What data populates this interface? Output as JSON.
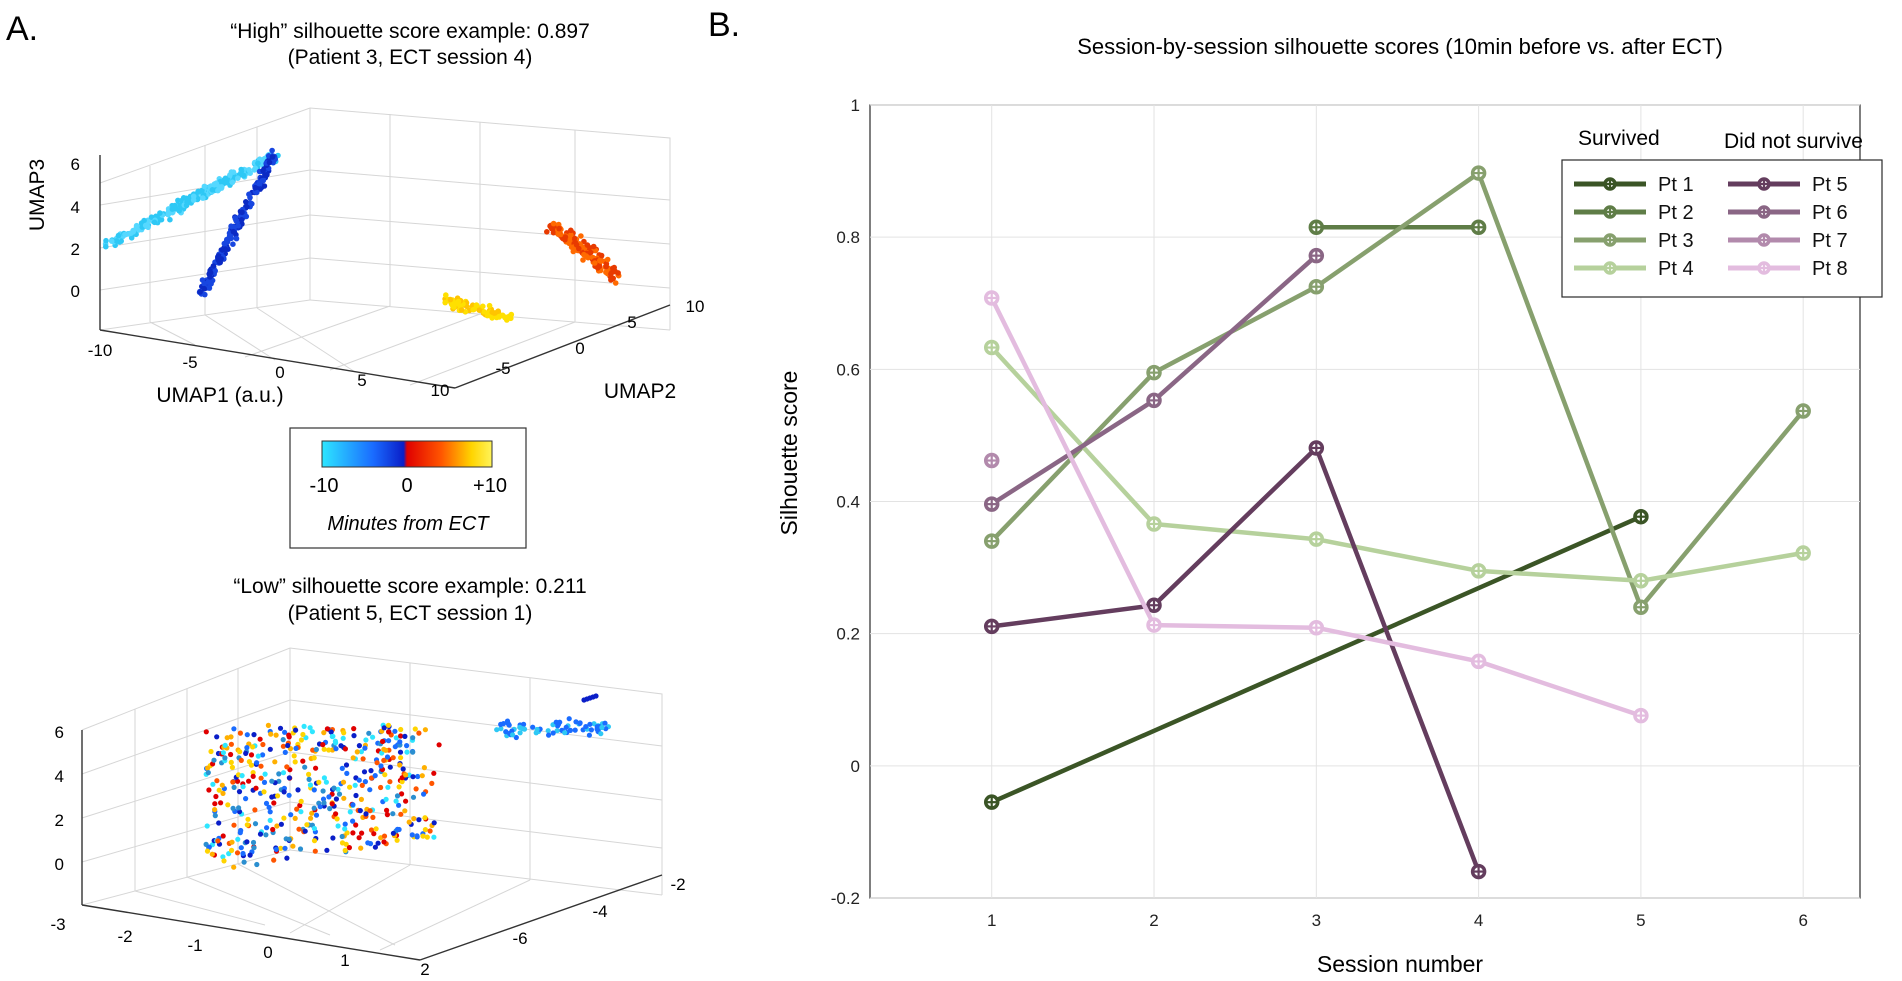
{
  "panelA": {
    "label": "A.",
    "high": {
      "title": "“High” silhouette score example: 0.897",
      "subtitle": "(Patient 3, ECT session 4)",
      "xlabel": "UMAP1 (a.u.)",
      "ylabel": "UMAP2",
      "zlabel": "UMAP3",
      "xticks": [
        "-10",
        "-5",
        "0",
        "5",
        "10"
      ],
      "yticks": [
        "-5",
        "0",
        "5",
        "10"
      ],
      "zticks": [
        "0",
        "2",
        "4",
        "6"
      ]
    },
    "low": {
      "title": "“Low” silhouette score example: 0.211",
      "subtitle": "(Patient 5, ECT session 1)",
      "xticks": [
        "-3",
        "-2",
        "-1",
        "0",
        "1",
        "2"
      ],
      "yticks": [
        "-6",
        "-4",
        "-2"
      ],
      "zticks": [
        "0",
        "2",
        "4",
        "6"
      ]
    },
    "colorbar": {
      "ticks": [
        "-10",
        "0",
        "+10"
      ],
      "label": "Minutes from ECT",
      "colors": [
        "#2ee6ff",
        "#1a6cff",
        "#0a1ec8",
        "#e00000",
        "#ff5500",
        "#ffd400",
        "#fff45a"
      ]
    }
  },
  "chart_data": {
    "type": "line",
    "label": "B.",
    "title": "Session-by-session silhouette scores (10min before vs. after ECT)",
    "xlabel": "Session number",
    "ylabel": "Silhouette score",
    "xlim": [
      0.25,
      6.35
    ],
    "ylim": [
      -0.2,
      1.0
    ],
    "xticks": [
      1,
      2,
      3,
      4,
      5,
      6
    ],
    "yticks": [
      -0.2,
      0,
      0.2,
      0.4,
      0.6,
      0.8,
      1
    ],
    "ytick_labels": [
      "-0.2",
      "0",
      "0.2",
      "0.4",
      "0.6",
      "0.8",
      "1"
    ],
    "grid": true,
    "legend": {
      "position": "top-right",
      "group_survived": "Survived",
      "group_not_survived": "Did not survive"
    },
    "series": [
      {
        "name": "Pt 1",
        "group": "survived",
        "color": "#3b5526",
        "x": [
          1,
          5
        ],
        "y": [
          -0.055,
          0.377
        ]
      },
      {
        "name": "Pt 2",
        "group": "survived",
        "color": "#5f7d47",
        "x": [
          3,
          4
        ],
        "y": [
          0.815,
          0.815
        ]
      },
      {
        "name": "Pt 3",
        "group": "survived",
        "color": "#87a06e",
        "x": [
          1,
          2,
          3,
          4,
          5,
          6
        ],
        "y": [
          0.34,
          0.595,
          0.725,
          0.897,
          0.24,
          0.537
        ]
      },
      {
        "name": "Pt 4",
        "group": "survived",
        "color": "#b6d19c",
        "x": [
          1,
          2,
          3,
          4,
          5,
          6
        ],
        "y": [
          0.633,
          0.366,
          0.343,
          0.295,
          0.28,
          0.322
        ]
      },
      {
        "name": "Pt 5",
        "group": "not",
        "color": "#643d5e",
        "x": [
          1,
          2,
          3,
          4
        ],
        "y": [
          0.211,
          0.243,
          0.481,
          -0.16
        ]
      },
      {
        "name": "Pt 6",
        "group": "not",
        "color": "#8a6685",
        "x": [
          1,
          2,
          3
        ],
        "y": [
          0.396,
          0.553,
          0.772
        ]
      },
      {
        "name": "Pt 7",
        "group": "not",
        "color": "#b28aac",
        "x": [
          1
        ],
        "y": [
          0.462
        ]
      },
      {
        "name": "Pt 8",
        "group": "not",
        "color": "#e3bcdf",
        "x": [
          1,
          2,
          3,
          4,
          5
        ],
        "y": [
          0.708,
          0.213,
          0.209,
          0.158,
          0.076
        ]
      }
    ]
  }
}
